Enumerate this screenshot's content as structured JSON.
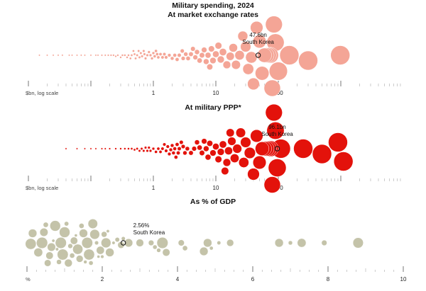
{
  "figure": {
    "title": "Military spending, 2024"
  },
  "chart_data": [
    {
      "type": "scatter",
      "title": "At market exchange rates",
      "xlabel": "$bn, log scale",
      "x_scale": "log",
      "xlim": [
        0.01,
        2000
      ],
      "tick_labels": [
        "1",
        "10",
        "100"
      ],
      "tick_values": [
        1,
        10,
        100
      ],
      "color": "#f4a596",
      "highlight": {
        "label_value": "47.6bn",
        "label_name": "South Korea",
        "value": 47.6
      },
      "values": [
        0.015,
        0.02,
        0.025,
        0.03,
        0.035,
        0.045,
        0.05,
        0.06,
        0.07,
        0.08,
        0.1,
        0.12,
        0.13,
        0.15,
        0.17,
        0.19,
        0.21,
        0.23,
        0.25,
        0.27,
        0.3,
        0.32,
        0.35,
        0.38,
        0.4,
        0.43,
        0.45,
        0.48,
        0.5,
        0.52,
        0.55,
        0.58,
        0.6,
        0.63,
        0.66,
        0.7,
        0.72,
        0.75,
        0.8,
        0.85,
        0.9,
        0.95,
        1.0,
        1.05,
        1.1,
        1.15,
        1.2,
        1.3,
        1.4,
        1.5,
        1.6,
        1.8,
        2.0,
        2.2,
        2.4,
        2.6,
        2.9,
        3.0,
        3.3,
        3.6,
        4.0,
        4.3,
        4.7,
        5.0,
        5.5,
        6.0,
        6.5,
        7.0,
        7.5,
        8.0,
        8.5,
        9.0,
        10.0,
        11.0,
        12.0,
        13.0,
        15.0,
        17.0,
        19.0,
        21.0,
        24.0,
        27.0,
        30.0,
        33.0,
        37.0,
        40.0,
        45.0,
        50.0,
        55.0,
        60.0,
        65.0,
        70.0,
        75.0,
        80.0,
        85.0,
        90.0,
        100.0,
        150.0,
        300.0,
        980.0
      ]
    },
    {
      "type": "scatter",
      "title": "At military PPP*",
      "xlabel": "$bn, log scale",
      "x_scale": "log",
      "xlim": [
        0.01,
        2000
      ],
      "tick_labels": [
        "1",
        "10",
        "100"
      ],
      "tick_values": [
        1,
        10,
        100
      ],
      "color": "#e3120b",
      "highlight": {
        "label_value": "96.1bn",
        "label_name": "South Korea",
        "value": 96.1
      },
      "values": [
        0.04,
        0.06,
        0.08,
        0.1,
        0.12,
        0.15,
        0.17,
        0.2,
        0.25,
        0.3,
        0.35,
        0.4,
        0.45,
        0.5,
        0.55,
        0.6,
        0.65,
        0.7,
        0.75,
        0.8,
        0.85,
        0.9,
        1.0,
        1.1,
        1.2,
        1.3,
        1.4,
        1.5,
        1.6,
        1.7,
        1.8,
        1.9,
        2.0,
        2.1,
        2.2,
        2.3,
        2.4,
        2.5,
        2.6,
        2.8,
        3.0,
        3.2,
        3.5,
        4.0,
        4.5,
        5.0,
        5.5,
        6.0,
        6.5,
        7.0,
        7.5,
        8.0,
        9.0,
        10.0,
        11.0,
        12.0,
        13.0,
        14.0,
        15.0,
        16.0,
        17.0,
        18.0,
        20.0,
        22.0,
        25.0,
        28.0,
        30.0,
        35.0,
        40.0,
        45.0,
        50.0,
        55.0,
        60.0,
        65.0,
        70.0,
        75.0,
        80.0,
        85.0,
        90.0,
        96.1,
        110.0,
        250.0,
        500.0,
        900.0,
        1100.0
      ]
    },
    {
      "type": "scatter",
      "title": "As % of GDP",
      "xlabel": "%",
      "x_scale": "linear",
      "xlim": [
        0,
        10
      ],
      "tick_labels": [
        "2",
        "4",
        "6",
        "8",
        "10"
      ],
      "tick_values": [
        2,
        4,
        6,
        8,
        10
      ],
      "color": "#c4c3a9",
      "highlight": {
        "label_value": "2.56%",
        "label_name": "South Korea",
        "value": 2.56
      },
      "values": [
        0.1,
        0.15,
        0.3,
        0.4,
        0.45,
        0.5,
        0.55,
        0.6,
        0.65,
        0.7,
        0.75,
        0.8,
        0.85,
        0.9,
        0.95,
        1.0,
        1.05,
        1.1,
        1.15,
        1.2,
        1.25,
        1.3,
        1.35,
        1.4,
        1.45,
        1.5,
        1.55,
        1.6,
        1.65,
        1.7,
        1.75,
        1.8,
        1.85,
        1.9,
        1.95,
        2.0,
        2.05,
        2.1,
        2.15,
        2.2,
        2.3,
        2.4,
        2.5,
        2.56,
        2.7,
        3.0,
        3.3,
        3.4,
        3.5,
        3.6,
        3.7,
        4.1,
        4.2,
        4.7,
        4.8,
        4.9,
        5.1,
        5.4,
        6.7,
        7.0,
        7.3,
        7.9,
        8.8
      ]
    }
  ]
}
